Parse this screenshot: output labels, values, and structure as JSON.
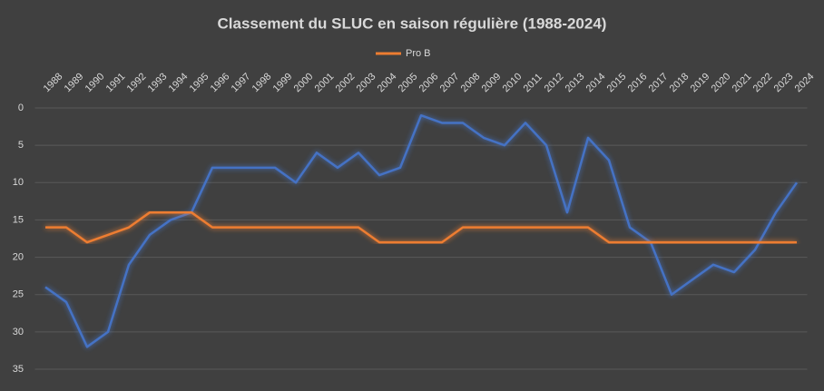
{
  "chart_data": {
    "type": "line",
    "title": "Classement du SLUC en saison régulière (1988-2024)",
    "categories": [
      "1988",
      "1989",
      "1990",
      "1991",
      "1992",
      "1993",
      "1994",
      "1995",
      "1996",
      "1997",
      "1998",
      "1999",
      "2000",
      "2001",
      "2002",
      "2003",
      "2004",
      "2005",
      "2006",
      "2007",
      "2008",
      "2009",
      "2010",
      "2011",
      "2012",
      "2013",
      "2014",
      "2015",
      "2016",
      "2017",
      "2018",
      "2019",
      "2020",
      "2021",
      "2022",
      "2023",
      "2024"
    ],
    "series": [
      {
        "color": "#4472c4",
        "values": [
          24,
          26,
          32,
          30,
          21,
          17,
          15,
          14,
          8,
          8,
          8,
          8,
          10,
          6,
          8,
          6,
          9,
          8,
          1,
          2,
          2,
          4,
          5,
          2,
          5,
          14,
          4,
          7,
          16,
          18,
          25,
          23,
          21,
          22,
          19,
          14,
          10
        ]
      },
      {
        "name": "Pro B",
        "color": "#ed7d31",
        "values": [
          16,
          16,
          18,
          17,
          16,
          14,
          14,
          14,
          16,
          16,
          16,
          16,
          16,
          16,
          16,
          16,
          18,
          18,
          18,
          18,
          16,
          16,
          16,
          16,
          16,
          16,
          16,
          18,
          18,
          18,
          18,
          18,
          18,
          18,
          18,
          18,
          18
        ]
      }
    ],
    "ylim": [
      0,
      35
    ],
    "yticks": [
      0,
      5,
      10,
      15,
      20,
      25,
      30,
      35
    ],
    "y_reversed": true,
    "grid": true
  }
}
